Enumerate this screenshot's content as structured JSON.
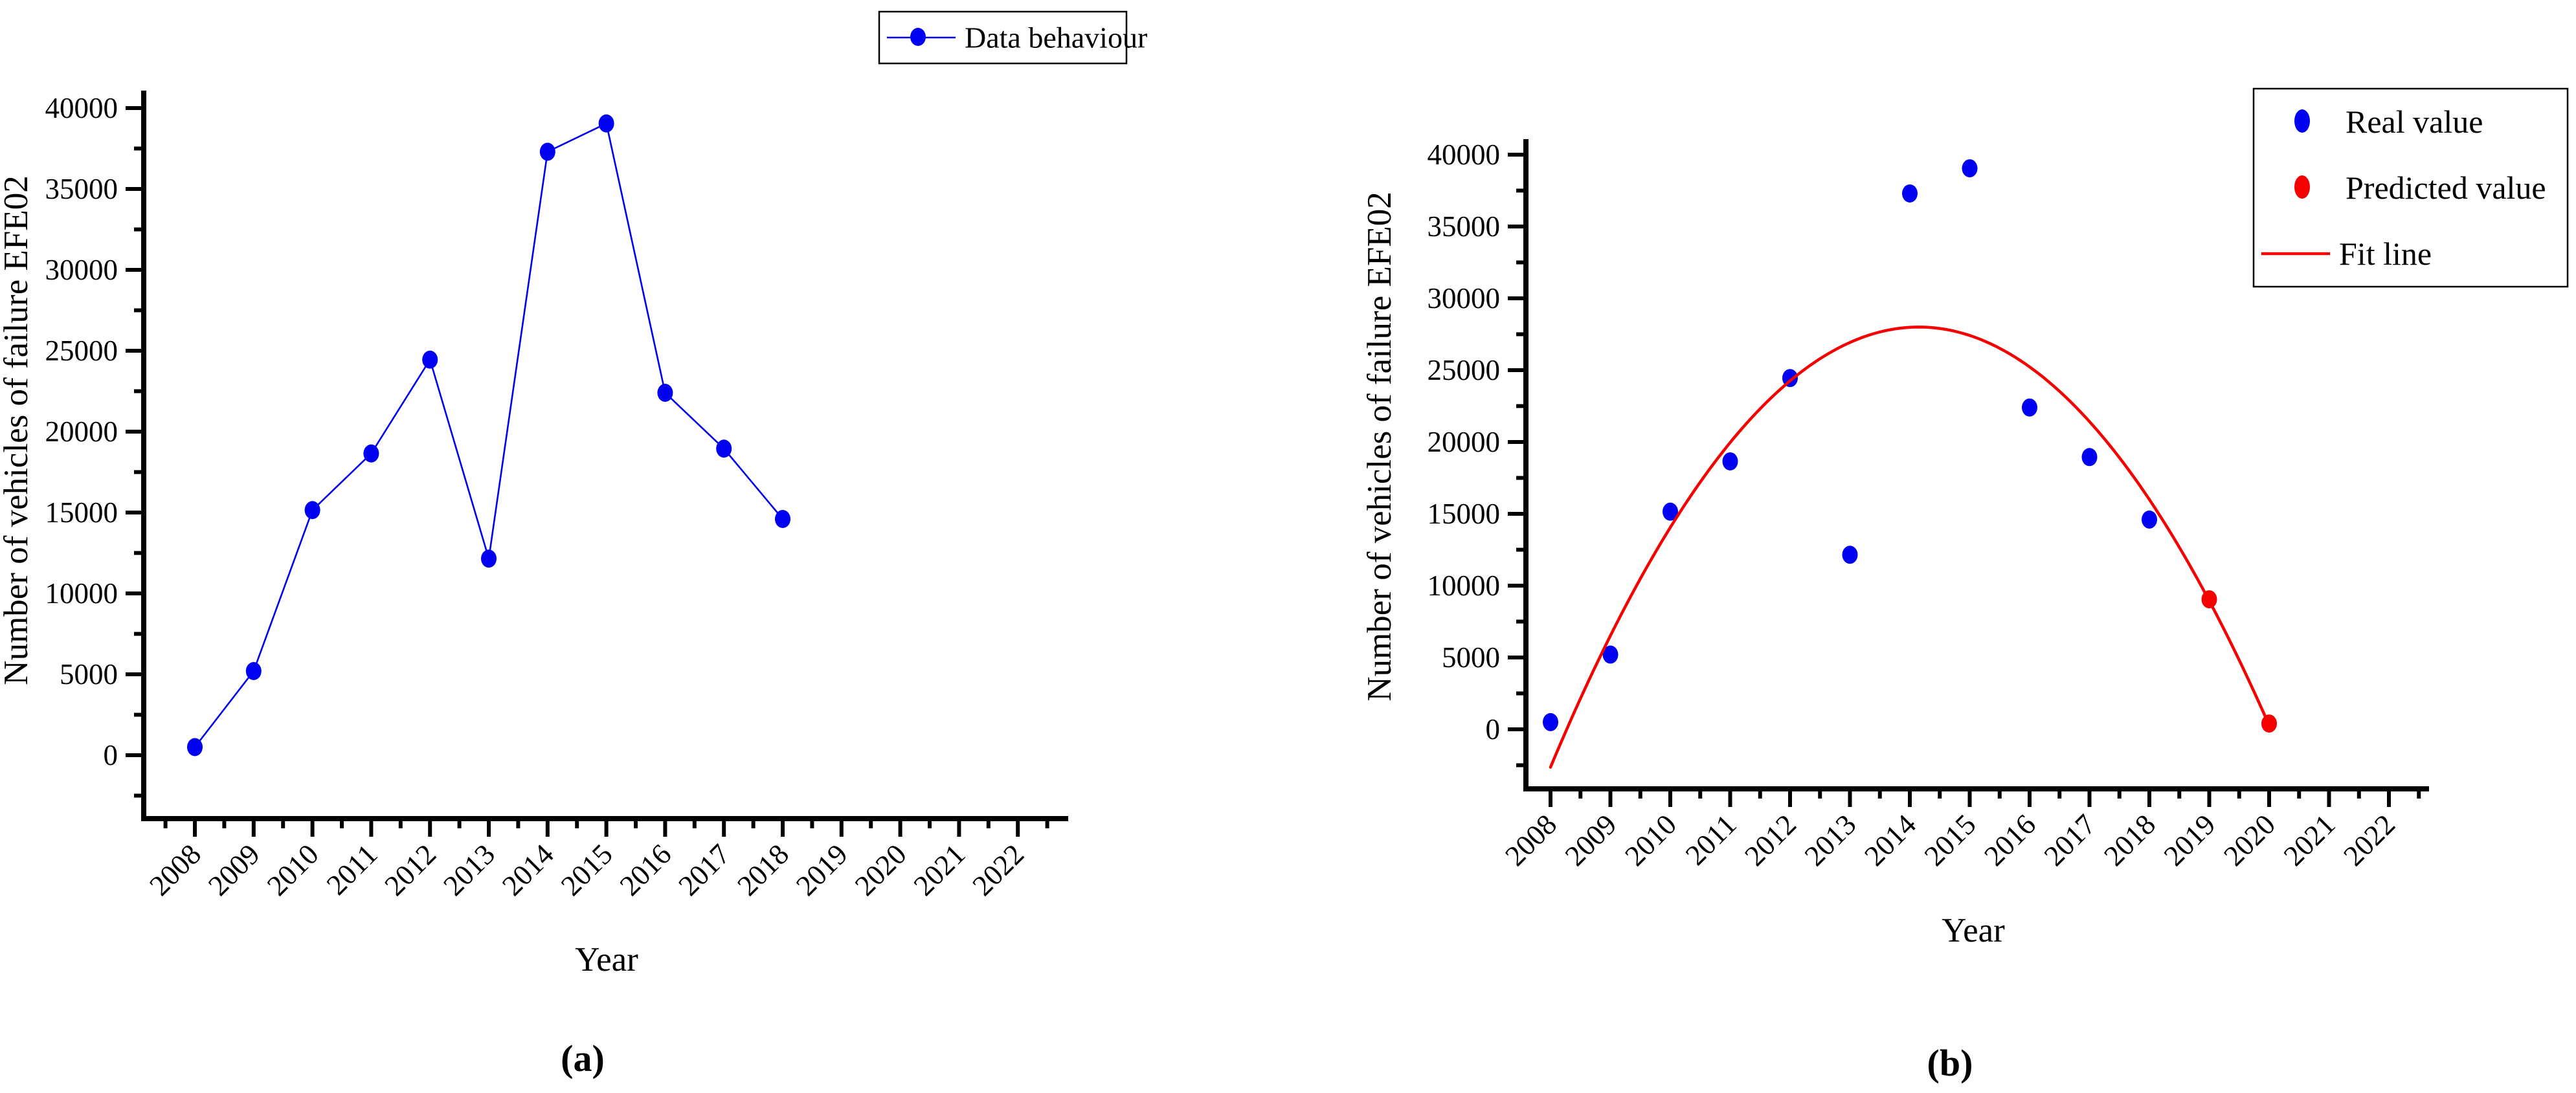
{
  "figure": {
    "background": "#ffffff",
    "axis_color": "#000000",
    "blue": "#0101f1",
    "red": "#f70000"
  },
  "captions": {
    "a": "(a)",
    "b": "(b)"
  },
  "chart_data": [
    {
      "id": "a",
      "type": "line",
      "title": "",
      "xlabel": "Year",
      "ylabel": "Number of vehicles of failure EFE02",
      "xlim": [
        2007.5,
        2022.5
      ],
      "ylim": [
        -4000,
        41000
      ],
      "x_ticks": [
        2008,
        2009,
        2010,
        2011,
        2012,
        2013,
        2014,
        2015,
        2016,
        2017,
        2018,
        2019,
        2020,
        2021,
        2022
      ],
      "y_ticks": [
        0,
        5000,
        10000,
        15000,
        20000,
        25000,
        30000,
        35000,
        40000
      ],
      "y_minor_ticks": [
        -2500,
        2500,
        7500,
        12500,
        17500,
        22500,
        27500,
        32500,
        37500
      ],
      "x_minor_step": 0.5,
      "grid": false,
      "legend": {
        "position": "top-center",
        "items": [
          {
            "label": "Data behaviour",
            "marker": "dot",
            "line": true,
            "color": "#0101f1"
          }
        ]
      },
      "series": [
        {
          "name": "Data behaviour",
          "color": "#0101f1",
          "marker": "dot",
          "line": true,
          "x": [
            2008,
            2009,
            2010,
            2011,
            2012,
            2013,
            2014,
            2015,
            2016,
            2017,
            2018
          ],
          "y": [
            500,
            5200,
            15150,
            18650,
            24450,
            12150,
            37300,
            39050,
            22400,
            18950,
            14600
          ]
        }
      ]
    },
    {
      "id": "b",
      "type": "scatter",
      "title": "",
      "xlabel": "Year",
      "ylabel": "Number of vehicles of failure EFE02",
      "xlim": [
        2007.5,
        2022.5
      ],
      "ylim": [
        -4500,
        41000
      ],
      "x_ticks": [
        2008,
        2009,
        2010,
        2011,
        2012,
        2013,
        2014,
        2015,
        2016,
        2017,
        2018,
        2019,
        2020,
        2021,
        2022
      ],
      "y_ticks": [
        0,
        5000,
        10000,
        15000,
        20000,
        25000,
        30000,
        35000,
        40000
      ],
      "y_minor_ticks": [
        -2500,
        2500,
        7500,
        12500,
        17500,
        22500,
        27500,
        32500,
        37500
      ],
      "x_minor_step": 0.5,
      "grid": false,
      "legend": {
        "position": "top-right",
        "items": [
          {
            "label": "Real value",
            "marker": "dot",
            "line": false,
            "color": "#0101f1"
          },
          {
            "label": "Predicted value",
            "marker": "dot",
            "line": false,
            "color": "#f70000"
          },
          {
            "label": "Fit line",
            "marker": "line",
            "line": true,
            "color": "#f70000"
          }
        ]
      },
      "series": [
        {
          "name": "Real value",
          "color": "#0101f1",
          "marker": "dot",
          "line": false,
          "x": [
            2008,
            2009,
            2010,
            2011,
            2012,
            2013,
            2014,
            2015,
            2016,
            2017,
            2018
          ],
          "y": [
            500,
            5200,
            15150,
            18650,
            24450,
            12150,
            37300,
            39050,
            22400,
            18950,
            14600
          ]
        },
        {
          "name": "Predicted value",
          "color": "#f70000",
          "marker": "dot",
          "line": false,
          "x": [
            2019,
            2020
          ],
          "y": [
            9050,
            400
          ]
        },
        {
          "name": "Fit line",
          "color": "#f70000",
          "marker": "none",
          "line": true,
          "fit": {
            "form": "quadratic",
            "a": -810,
            "h": 2014.15,
            "k": 28000,
            "x_start": 2008.0,
            "x_end": 2020.0
          }
        }
      ]
    }
  ]
}
